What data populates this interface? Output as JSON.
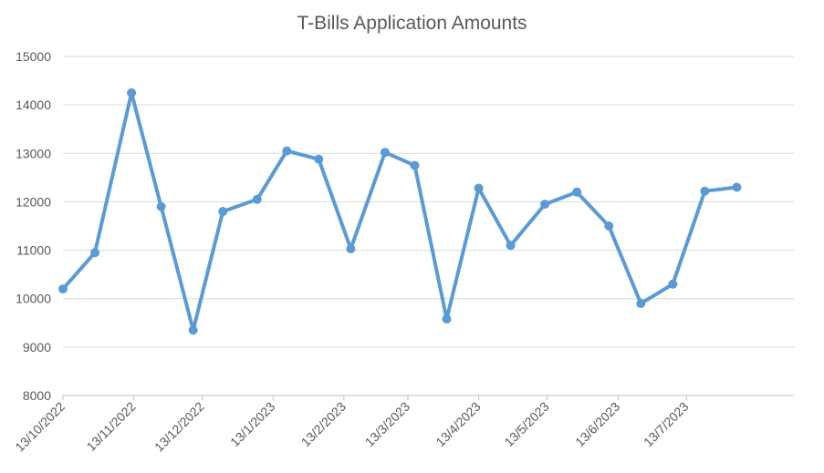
{
  "chart_data": {
    "type": "line",
    "title": "T-Bills Application Amounts",
    "xlabel": "",
    "ylabel": "",
    "ylim": [
      8000,
      15000
    ],
    "yticks": [
      8000,
      9000,
      10000,
      11000,
      12000,
      13000,
      14000,
      15000
    ],
    "xlim": [
      "2022-10-13",
      "2023-08-29"
    ],
    "xticks": [
      "2022-10-13",
      "2022-11-13",
      "2022-12-13",
      "2023-01-13",
      "2023-02-13",
      "2023-03-13",
      "2023-04-13",
      "2023-05-13",
      "2023-06-13",
      "2023-07-13"
    ],
    "xtick_labels": [
      "13/10/2022",
      "13/11/2022",
      "13/12/2022",
      "13/1/2023",
      "13/2/2023",
      "13/3/2023",
      "13/4/2023",
      "13/5/2023",
      "13/6/2023",
      "13/7/2023"
    ],
    "grid": true,
    "series": [
      {
        "color": "#5b9bd5",
        "x": [
          "2022-10-13",
          "2022-10-27",
          "2022-11-12",
          "2022-11-25",
          "2022-12-09",
          "2022-12-22",
          "2023-01-06",
          "2023-01-19",
          "2023-02-02",
          "2023-02-16",
          "2023-03-03",
          "2023-03-16",
          "2023-03-30",
          "2023-04-13",
          "2023-04-27",
          "2023-05-12",
          "2023-05-26",
          "2023-06-09",
          "2023-06-23",
          "2023-07-07",
          "2023-07-21",
          "2023-08-04"
        ],
        "values": [
          10200,
          10950,
          14250,
          11900,
          9350,
          11800,
          12050,
          13050,
          12880,
          11030,
          13020,
          12750,
          9580,
          12280,
          11100,
          11950,
          12200,
          11500,
          9900,
          10300,
          12220,
          12300
        ]
      }
    ]
  }
}
